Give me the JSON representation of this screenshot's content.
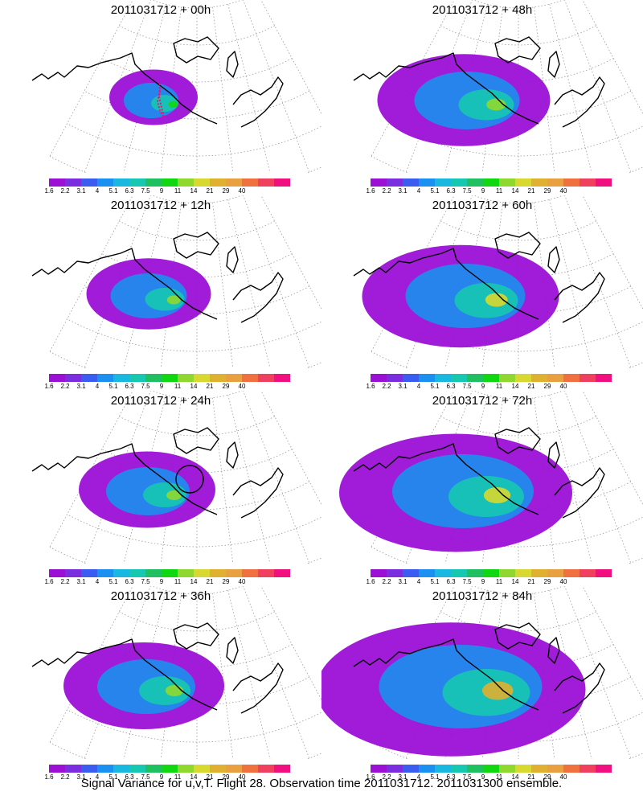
{
  "caption": "Signal Variance for u,v,T. Flight 28. Observation time 2011031712. 2011031300 ensemble.",
  "colorbar": {
    "labels": [
      "1.6",
      "2.2",
      "3.1",
      "4",
      "5.1",
      "6.3",
      "7.5",
      "9",
      "11",
      "14",
      "21",
      "29",
      "40"
    ],
    "colors": [
      "#9c10d6",
      "#7b2ee0",
      "#3a5cf0",
      "#1a90f0",
      "#18b8e0",
      "#16c8b0",
      "#20c060",
      "#10d810",
      "#90d830",
      "#d8d830",
      "#e0b030",
      "#e8a040",
      "#f07040",
      "#f04060",
      "#f01080"
    ]
  },
  "panels": [
    {
      "title": "2011031712 + 00h",
      "level": 0.1,
      "track": true,
      "ring": false
    },
    {
      "title": "2011031712 + 48h",
      "level": 0.45,
      "track": false,
      "ring": false
    },
    {
      "title": "2011031712 + 12h",
      "level": 0.25,
      "track": false,
      "ring": false
    },
    {
      "title": "2011031712 + 60h",
      "level": 0.55,
      "track": false,
      "ring": false
    },
    {
      "title": "2011031712 + 24h",
      "level": 0.3,
      "track": false,
      "ring": true
    },
    {
      "title": "2011031712 + 72h",
      "level": 0.7,
      "track": false,
      "ring": false
    },
    {
      "title": "2011031712 + 36h",
      "level": 0.4,
      "track": false,
      "ring": false
    },
    {
      "title": "2011031712 + 84h",
      "level": 0.85,
      "track": false,
      "ring": false
    }
  ]
}
